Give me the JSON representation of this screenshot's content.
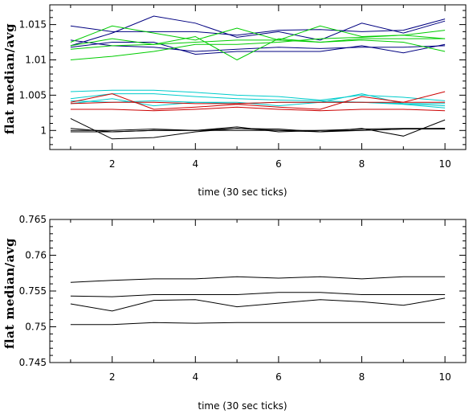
{
  "chart_data": [
    {
      "type": "line",
      "xlabel": "time (30 sec ticks)",
      "ylabel": "flat median/avg",
      "xlim": [
        0.5,
        10.5
      ],
      "ylim": [
        0.9973,
        1.0178
      ],
      "xticks": [
        2,
        4,
        6,
        8,
        10
      ],
      "yticks": [
        1,
        1.005,
        1.01,
        1.015
      ],
      "ytick_labels": [
        "1",
        "1.005",
        "1.01",
        "1.015"
      ],
      "x": [
        1,
        2,
        3,
        4,
        5,
        6,
        7,
        8,
        9,
        10
      ],
      "series": [
        {
          "color": "#000080",
          "values": [
            1.0148,
            1.014,
            1.014,
            1.014,
            1.0135,
            1.0142,
            1.0143,
            1.014,
            1.0142,
            1.0158
          ]
        },
        {
          "color": "#000080",
          "values": [
            1.012,
            1.0138,
            1.0162,
            1.0152,
            1.0132,
            1.014,
            1.0128,
            1.0152,
            1.0138,
            1.0155
          ]
        },
        {
          "color": "#000080",
          "values": [
            1.0118,
            1.0125,
            1.0125,
            1.0108,
            1.0112,
            1.0112,
            1.0112,
            1.012,
            1.011,
            1.0122
          ]
        },
        {
          "color": "#000080",
          "values": [
            1.0128,
            1.012,
            1.0118,
            1.0112,
            1.0115,
            1.0118,
            1.0116,
            1.0118,
            1.0118,
            1.012
          ]
        },
        {
          "color": "#00cc00",
          "values": [
            1.0125,
            1.0148,
            1.0138,
            1.0128,
            1.0145,
            1.0128,
            1.0148,
            1.0133,
            1.0135,
            1.013
          ]
        },
        {
          "color": "#00cc00",
          "values": [
            1.012,
            1.013,
            1.0122,
            1.0133,
            1.01,
            1.013,
            1.0125,
            1.0128,
            1.0125,
            1.0112
          ]
        },
        {
          "color": "#00cc00",
          "values": [
            1.01,
            1.0105,
            1.0112,
            1.0122,
            1.0122,
            1.0125,
            1.013,
            1.0132,
            1.0135,
            1.0142
          ]
        },
        {
          "color": "#00cc00",
          "values": [
            1.0115,
            1.012,
            1.0122,
            1.0125,
            1.0128,
            1.0128,
            1.0125,
            1.013,
            1.013,
            1.013
          ]
        },
        {
          "color": "#00cccc",
          "values": [
            1.0055,
            1.0057,
            1.0057,
            1.0054,
            1.005,
            1.0048,
            1.0043,
            1.005,
            1.0047,
            1.0042
          ]
        },
        {
          "color": "#00cccc",
          "values": [
            1.0045,
            1.0052,
            1.0052,
            1.0048,
            1.0045,
            1.0043,
            1.0042,
            1.004,
            1.0038,
            1.0038
          ]
        },
        {
          "color": "#00cccc",
          "values": [
            1.0038,
            1.0045,
            1.0035,
            1.004,
            1.004,
            1.0035,
            1.004,
            1.0052,
            1.0038,
            1.0035
          ]
        },
        {
          "color": "#00cccc",
          "values": [
            1.0042,
            1.004,
            1.0042,
            1.004,
            1.0038,
            1.004,
            1.004,
            1.004,
            1.0037,
            1.0032
          ]
        },
        {
          "color": "#cc0000",
          "values": [
            1.003,
            1.003,
            1.0028,
            1.003,
            1.0033,
            1.003,
            1.0028,
            1.003,
            1.003,
            1.0028
          ]
        },
        {
          "color": "#cc0000",
          "values": [
            1.004,
            1.0052,
            1.003,
            1.0033,
            1.0037,
            1.0033,
            1.003,
            1.0048,
            1.004,
            1.0055
          ]
        },
        {
          "color": "#cc0000",
          "values": [
            1.0038,
            1.004,
            1.004,
            1.0038,
            1.0038,
            1.004,
            1.004,
            1.004,
            1.004,
            1.004
          ]
        },
        {
          "color": "#000000",
          "values": [
            1.0017,
            0.9988,
            0.999,
            0.9998,
            1.0003,
            1.0002,
            0.9998,
            1.0003,
            0.9992,
            1.0015
          ]
        },
        {
          "color": "#000000",
          "values": [
            1.0003,
            0.9998,
            1.0,
            1.0,
            1.0,
            1.0,
            0.9998,
            1.0,
            1.0002,
            1.0003
          ]
        },
        {
          "color": "#000000",
          "values": [
            1.0,
            1.0,
            1.0002,
            1.0,
            1.0005,
            0.9998,
            1.0,
            1.0002,
            1.0003,
            1.0003
          ]
        },
        {
          "color": "#000000",
          "values": [
            0.9998,
            0.9998,
            1.0,
            1.0,
            1.0003,
            1.0,
            1.0,
            1.0,
            1.0002,
            1.0002
          ]
        }
      ]
    },
    {
      "type": "line",
      "xlabel": "time (30 sec ticks)",
      "ylabel": "flat median/avg",
      "xlim": [
        0.5,
        10.5
      ],
      "ylim": [
        0.745,
        0.765
      ],
      "xticks": [
        2,
        4,
        6,
        8,
        10
      ],
      "yticks": [
        0.745,
        0.75,
        0.755,
        0.76,
        0.765
      ],
      "ytick_labels": [
        "0.745",
        "0.75",
        "0.755",
        "0.76",
        "0.765"
      ],
      "x": [
        1,
        2,
        3,
        4,
        5,
        6,
        7,
        8,
        9,
        10
      ],
      "series": [
        {
          "color": "#000000",
          "values": [
            0.7562,
            0.7565,
            0.7567,
            0.7567,
            0.757,
            0.7568,
            0.757,
            0.7567,
            0.757,
            0.757
          ]
        },
        {
          "color": "#000000",
          "values": [
            0.7543,
            0.7542,
            0.7545,
            0.7545,
            0.7545,
            0.7548,
            0.7548,
            0.7545,
            0.7545,
            0.7545
          ]
        },
        {
          "color": "#000000",
          "values": [
            0.7532,
            0.7522,
            0.7537,
            0.7538,
            0.7528,
            0.7533,
            0.7538,
            0.7535,
            0.753,
            0.754
          ]
        },
        {
          "color": "#000000",
          "values": [
            0.7503,
            0.7503,
            0.7506,
            0.7505,
            0.7506,
            0.7506,
            0.7506,
            0.7506,
            0.7506,
            0.7506
          ]
        }
      ]
    }
  ]
}
